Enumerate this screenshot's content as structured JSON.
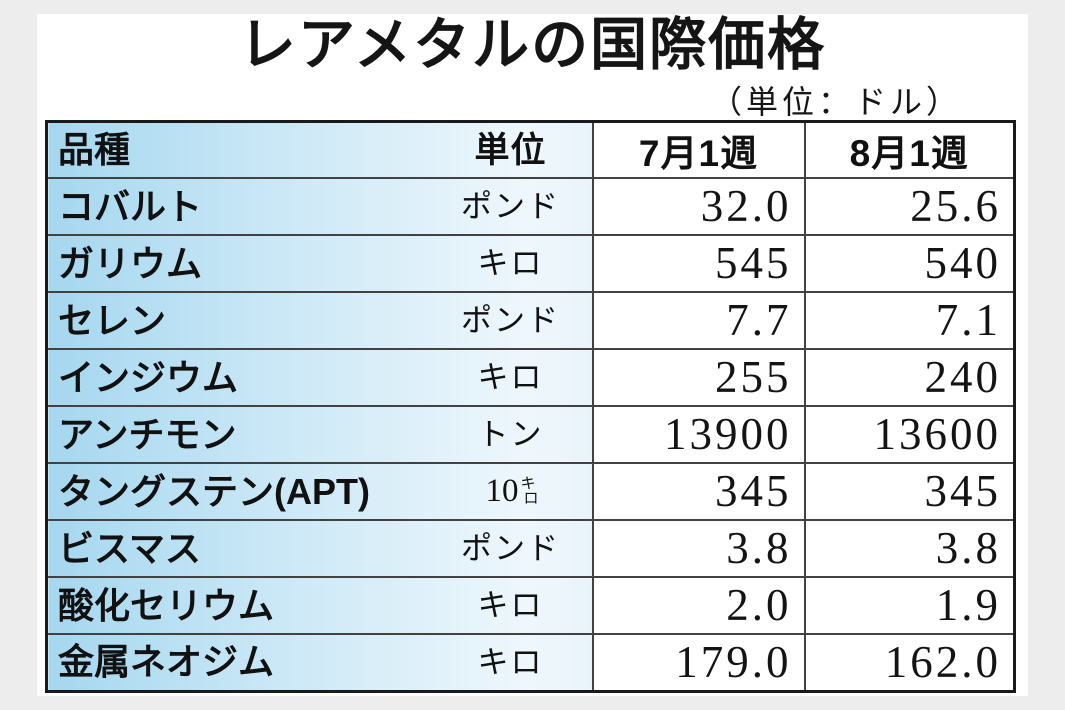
{
  "chart_data": {
    "type": "table",
    "title": "レアメタルの国際価格",
    "unit_note": "（単位：ドル）",
    "columns": [
      "品種",
      "単位",
      "7月1週",
      "8月1週"
    ],
    "rows": [
      {
        "item": "コバルト",
        "unit": "ポンド",
        "jul_week1": "32.0",
        "aug_week1": "25.6"
      },
      {
        "item": "ガリウム",
        "unit": "キロ",
        "jul_week1": "545",
        "aug_week1": "540"
      },
      {
        "item": "セレン",
        "unit": "ポンド",
        "jul_week1": "7.7",
        "aug_week1": "7.1"
      },
      {
        "item": "インジウム",
        "unit": "キロ",
        "jul_week1": "255",
        "aug_week1": "240"
      },
      {
        "item": "アンチモン",
        "unit": "トン",
        "jul_week1": "13900",
        "aug_week1": "13600"
      },
      {
        "item": "タングステン(APT)",
        "unit": "10キロ",
        "unit_display": {
          "main": "10",
          "small_top": "キ",
          "small_bottom": "ロ"
        },
        "jul_week1": "345",
        "aug_week1": "345"
      },
      {
        "item": "ビスマス",
        "unit": "ポンド",
        "jul_week1": "3.8",
        "aug_week1": "3.8"
      },
      {
        "item": "酸化セリウム",
        "unit": "キロ",
        "jul_week1": "2.0",
        "aug_week1": "1.9"
      },
      {
        "item": "金属ネオジム",
        "unit": "キロ",
        "jul_week1": "179.0",
        "aug_week1": "162.0"
      }
    ]
  },
  "colors": {
    "page_bg": "#ededed",
    "card_bg": "#ffffff",
    "cell_gradient_start": "#a5d7ef",
    "cell_gradient_end": "#eef7fc",
    "border_outer": "#1a1a1a",
    "border_inner": "#424242",
    "text": "#111111"
  }
}
